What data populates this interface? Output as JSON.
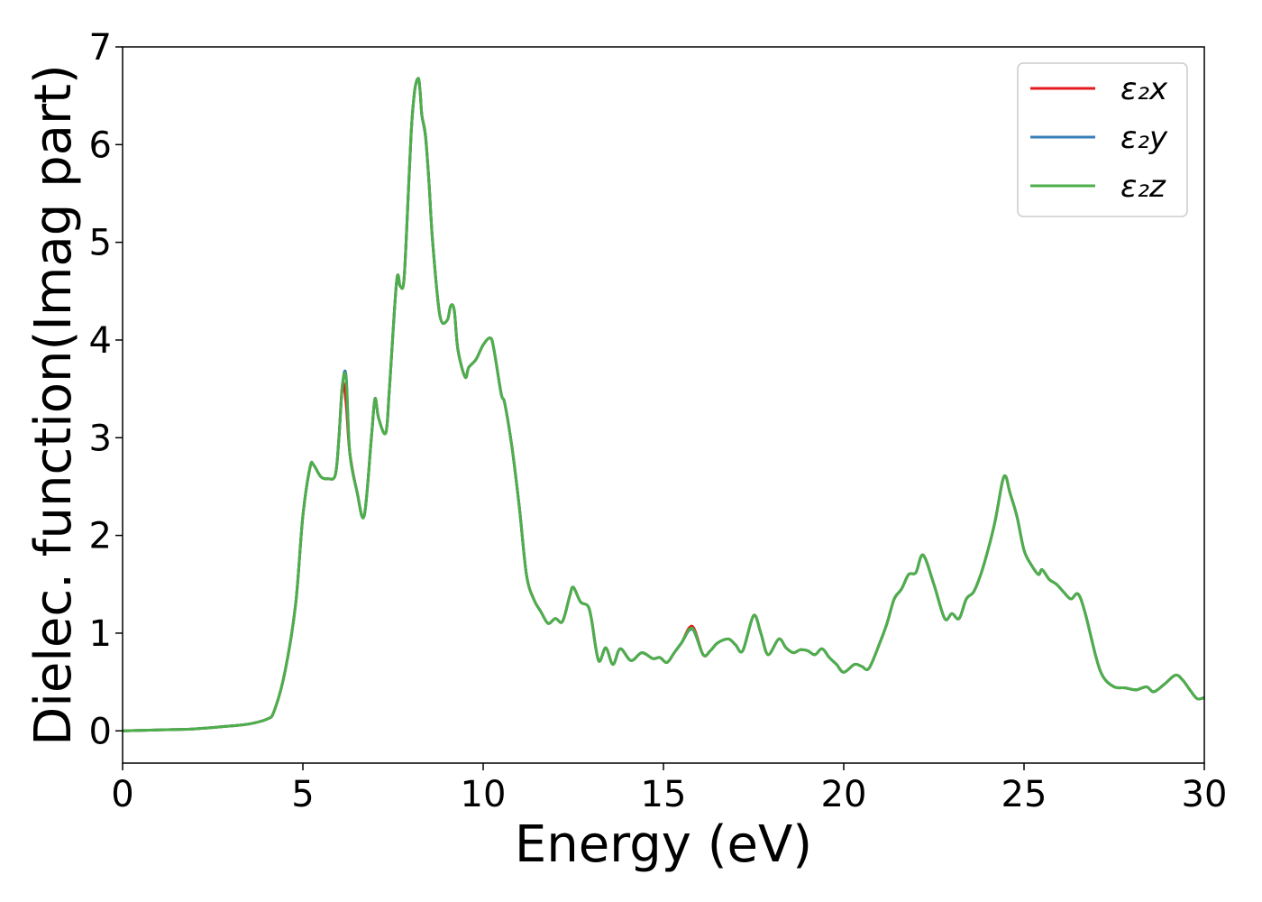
{
  "chart_data": {
    "type": "line",
    "title": "",
    "xlabel": "Energy (eV)",
    "ylabel": "Dielec. function(Imag part)",
    "xlim": [
      0,
      30
    ],
    "ylim": [
      -0.33,
      7.0
    ],
    "xticks": [
      0,
      5,
      10,
      15,
      20,
      25,
      30
    ],
    "yticks": [
      0,
      1,
      2,
      3,
      4,
      5,
      6,
      7
    ],
    "grid": false,
    "legend_position": "top-right",
    "x": [
      0,
      1,
      2,
      3,
      3.5,
      4,
      4.2,
      4.5,
      4.8,
      5.0,
      5.2,
      5.3,
      5.5,
      5.7,
      5.9,
      6.0,
      6.1,
      6.2,
      6.3,
      6.5,
      6.7,
      6.9,
      7.0,
      7.1,
      7.3,
      7.4,
      7.6,
      7.7,
      7.8,
      7.9,
      8.0,
      8.1,
      8.2,
      8.25,
      8.3,
      8.4,
      8.5,
      8.6,
      8.8,
      9.0,
      9.1,
      9.2,
      9.3,
      9.5,
      9.6,
      9.8,
      10.0,
      10.2,
      10.3,
      10.5,
      10.6,
      10.8,
      11.0,
      11.2,
      11.4,
      11.6,
      11.8,
      12.0,
      12.2,
      12.4,
      12.5,
      12.7,
      12.9,
      13.0,
      13.2,
      13.4,
      13.6,
      13.8,
      14.1,
      14.4,
      14.7,
      14.9,
      15.1,
      15.3,
      15.5,
      15.8,
      16.1,
      16.3,
      16.5,
      16.8,
      17.0,
      17.2,
      17.5,
      17.7,
      17.9,
      18.2,
      18.4,
      18.6,
      18.8,
      19.0,
      19.2,
      19.4,
      19.6,
      19.8,
      20.0,
      20.3,
      20.5,
      20.7,
      21.0,
      21.2,
      21.4,
      21.6,
      21.8,
      22.0,
      22.2,
      22.5,
      22.8,
      23.0,
      23.2,
      23.4,
      23.6,
      23.8,
      24.0,
      24.2,
      24.4,
      24.5,
      24.6,
      24.8,
      25.0,
      25.2,
      25.4,
      25.5,
      25.7,
      25.9,
      26.1,
      26.3,
      26.5,
      26.7,
      27.0,
      27.2,
      27.5,
      27.8,
      28.1,
      28.4,
      28.6,
      28.9,
      29.2,
      29.4,
      29.6,
      29.8,
      30.0
    ],
    "series": [
      {
        "name": "ε₂x",
        "color": "#e41a1c",
        "values": [
          0.0,
          0.01,
          0.02,
          0.05,
          0.07,
          0.12,
          0.2,
          0.6,
          1.3,
          2.2,
          2.7,
          2.72,
          2.6,
          2.58,
          2.62,
          3.0,
          3.55,
          3.35,
          2.85,
          2.45,
          2.2,
          3.0,
          3.4,
          3.2,
          3.05,
          3.5,
          4.6,
          4.55,
          4.6,
          5.3,
          6.1,
          6.55,
          6.68,
          6.55,
          6.3,
          6.1,
          5.6,
          5.0,
          4.25,
          4.2,
          4.35,
          4.3,
          3.9,
          3.62,
          3.72,
          3.8,
          3.95,
          4.02,
          3.9,
          3.45,
          3.35,
          2.9,
          2.3,
          1.6,
          1.35,
          1.22,
          1.1,
          1.15,
          1.12,
          1.38,
          1.47,
          1.32,
          1.28,
          1.15,
          0.72,
          0.85,
          0.68,
          0.84,
          0.72,
          0.8,
          0.74,
          0.75,
          0.7,
          0.8,
          0.9,
          1.07,
          0.78,
          0.82,
          0.9,
          0.94,
          0.88,
          0.82,
          1.18,
          1.0,
          0.78,
          0.94,
          0.85,
          0.8,
          0.83,
          0.82,
          0.78,
          0.84,
          0.75,
          0.68,
          0.6,
          0.68,
          0.66,
          0.64,
          0.9,
          1.1,
          1.35,
          1.45,
          1.6,
          1.62,
          1.8,
          1.5,
          1.15,
          1.2,
          1.15,
          1.35,
          1.42,
          1.6,
          1.85,
          2.15,
          2.55,
          2.6,
          2.45,
          2.2,
          1.85,
          1.7,
          1.6,
          1.65,
          1.55,
          1.5,
          1.42,
          1.35,
          1.4,
          1.2,
          0.75,
          0.55,
          0.45,
          0.44,
          0.42,
          0.45,
          0.4,
          0.48,
          0.57,
          0.52,
          0.42,
          0.33,
          0.34
        ]
      },
      {
        "name": "ε₂y",
        "color": "#377eb8",
        "values": [
          0.0,
          0.01,
          0.02,
          0.05,
          0.07,
          0.12,
          0.2,
          0.6,
          1.3,
          2.2,
          2.7,
          2.72,
          2.6,
          2.58,
          2.62,
          3.0,
          3.55,
          3.63,
          2.85,
          2.45,
          2.2,
          3.0,
          3.4,
          3.2,
          3.05,
          3.5,
          4.6,
          4.55,
          4.6,
          5.3,
          6.1,
          6.55,
          6.68,
          6.55,
          6.3,
          6.08,
          5.6,
          5.0,
          4.25,
          4.2,
          4.35,
          4.3,
          3.9,
          3.62,
          3.72,
          3.8,
          3.95,
          4.02,
          3.9,
          3.45,
          3.35,
          2.9,
          2.3,
          1.6,
          1.35,
          1.22,
          1.1,
          1.15,
          1.12,
          1.38,
          1.47,
          1.32,
          1.28,
          1.15,
          0.72,
          0.85,
          0.68,
          0.84,
          0.72,
          0.8,
          0.74,
          0.75,
          0.7,
          0.8,
          0.9,
          1.04,
          0.78,
          0.82,
          0.9,
          0.94,
          0.88,
          0.82,
          1.18,
          1.0,
          0.78,
          0.94,
          0.85,
          0.8,
          0.83,
          0.82,
          0.78,
          0.84,
          0.75,
          0.68,
          0.6,
          0.68,
          0.66,
          0.64,
          0.9,
          1.1,
          1.35,
          1.45,
          1.6,
          1.62,
          1.8,
          1.5,
          1.15,
          1.2,
          1.15,
          1.35,
          1.42,
          1.6,
          1.85,
          2.15,
          2.55,
          2.6,
          2.45,
          2.2,
          1.85,
          1.7,
          1.6,
          1.65,
          1.55,
          1.5,
          1.42,
          1.35,
          1.4,
          1.2,
          0.75,
          0.55,
          0.45,
          0.44,
          0.42,
          0.45,
          0.4,
          0.48,
          0.57,
          0.52,
          0.42,
          0.33,
          0.34
        ]
      },
      {
        "name": "ε₂z",
        "color": "#4daf4a",
        "values": [
          0.0,
          0.01,
          0.02,
          0.05,
          0.07,
          0.12,
          0.2,
          0.6,
          1.3,
          2.2,
          2.7,
          2.72,
          2.6,
          2.58,
          2.62,
          3.0,
          3.55,
          3.6,
          2.85,
          2.45,
          2.2,
          3.0,
          3.4,
          3.2,
          3.05,
          3.5,
          4.6,
          4.55,
          4.6,
          5.3,
          6.1,
          6.55,
          6.68,
          6.55,
          6.3,
          6.1,
          5.6,
          5.0,
          4.25,
          4.2,
          4.35,
          4.3,
          3.9,
          3.62,
          3.72,
          3.8,
          3.95,
          4.02,
          3.9,
          3.45,
          3.35,
          2.9,
          2.3,
          1.6,
          1.35,
          1.22,
          1.1,
          1.15,
          1.12,
          1.38,
          1.47,
          1.32,
          1.28,
          1.15,
          0.72,
          0.85,
          0.68,
          0.84,
          0.72,
          0.8,
          0.74,
          0.75,
          0.7,
          0.8,
          0.9,
          1.05,
          0.78,
          0.82,
          0.9,
          0.94,
          0.88,
          0.82,
          1.18,
          1.0,
          0.78,
          0.94,
          0.85,
          0.8,
          0.83,
          0.82,
          0.78,
          0.84,
          0.75,
          0.68,
          0.6,
          0.68,
          0.66,
          0.64,
          0.9,
          1.1,
          1.35,
          1.45,
          1.6,
          1.62,
          1.8,
          1.5,
          1.15,
          1.2,
          1.15,
          1.35,
          1.42,
          1.6,
          1.85,
          2.15,
          2.55,
          2.6,
          2.45,
          2.2,
          1.85,
          1.7,
          1.6,
          1.65,
          1.55,
          1.5,
          1.42,
          1.35,
          1.4,
          1.2,
          0.75,
          0.55,
          0.45,
          0.44,
          0.42,
          0.45,
          0.4,
          0.48,
          0.57,
          0.52,
          0.42,
          0.33,
          0.34
        ]
      }
    ]
  }
}
